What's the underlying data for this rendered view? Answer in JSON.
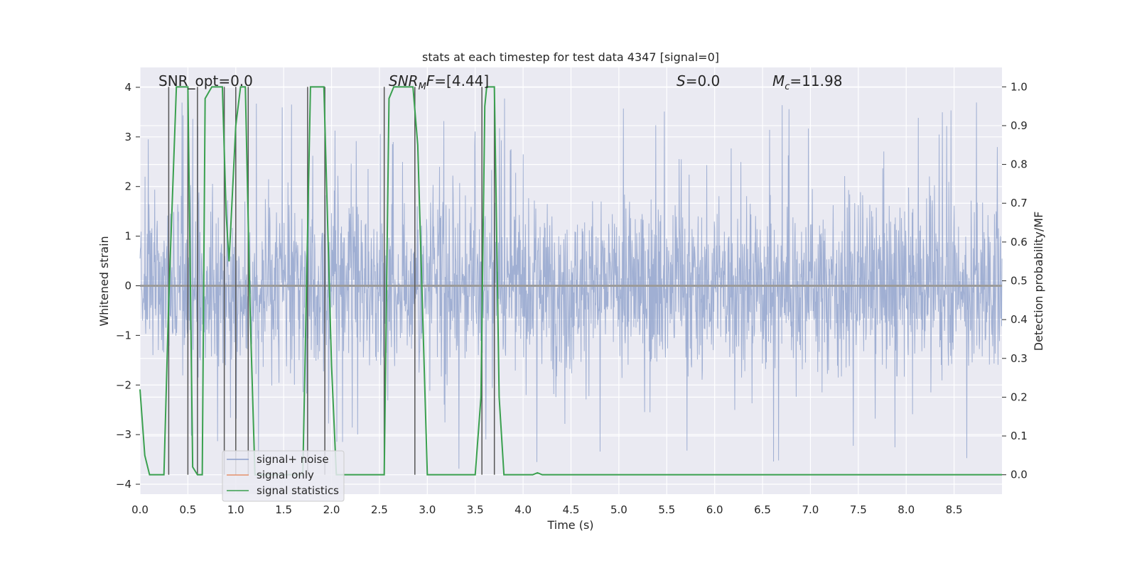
{
  "chart_data": {
    "type": "line",
    "title": "stats at each timestep for test data 4347 [signal=0]",
    "xlabel": "Time (s)",
    "ylabel": "Whitened strain",
    "y2label": "Detection probability/MF",
    "xlim": [
      0.0,
      9.0
    ],
    "ylim": [
      -4.2,
      4.4
    ],
    "y2lim": [
      -0.05,
      1.05
    ],
    "x_ticks": [
      "0.0",
      "0.5",
      "1.0",
      "1.5",
      "2.0",
      "2.5",
      "3.0",
      "3.5",
      "4.0",
      "4.5",
      "5.0",
      "5.5",
      "6.0",
      "6.5",
      "7.0",
      "7.5",
      "8.0",
      "8.5"
    ],
    "y_ticks": [
      "−4",
      "−3",
      "−2",
      "−1",
      "0",
      "1",
      "2",
      "3",
      "4"
    ],
    "y2_ticks": [
      "0.0",
      "0.1",
      "0.2",
      "0.3",
      "0.4",
      "0.5",
      "0.6",
      "0.7",
      "0.8",
      "0.9",
      "1.0"
    ],
    "grid": true,
    "annotations": {
      "snr_opt": "SNR_opt=0.0",
      "snr_mf_italic": "SNR",
      "snr_mf_sub": "M",
      "snr_mf_italic2": "F",
      "snr_mf_value": "=[4.44]",
      "s_italic": "S",
      "s_value": "=0.0",
      "mc_italic": "M",
      "mc_sub": "c",
      "mc_value": "=11.98"
    },
    "legend": {
      "placement": "lower-left",
      "entries": [
        {
          "label": "signal+ noise",
          "color": "#8da0cb"
        },
        {
          "label": "signal only",
          "color": "#e5906b"
        },
        {
          "label": "signal statistics",
          "color": "#3aa04f"
        }
      ]
    },
    "series": [
      {
        "name": "signal+ noise",
        "color": "#8da0cb",
        "axis": "left",
        "description": "whitened strain noise trace, roughly between -2.5 and 3.5",
        "noise_envelope": {
          "typical_low": -1.5,
          "typical_high": 1.7,
          "spike_max": 4.0,
          "spike_min": -3.9
        }
      },
      {
        "name": "signal only",
        "color": "#e5906b",
        "axis": "left",
        "x": [
          0.0,
          9.0
        ],
        "y": [
          0.0,
          0.0
        ]
      },
      {
        "name": "signal statistics",
        "color": "#3aa04f",
        "axis": "right",
        "x": [
          0.0,
          0.05,
          0.1,
          0.25,
          0.3,
          0.38,
          0.5,
          0.55,
          0.6,
          0.65,
          0.68,
          0.75,
          0.86,
          0.9,
          0.93,
          1.0,
          1.05,
          1.1,
          1.15,
          1.2,
          1.3,
          1.6,
          1.7,
          1.78,
          1.85,
          1.92,
          2.0,
          2.05,
          2.1,
          2.3,
          2.4,
          2.55,
          2.6,
          2.65,
          2.85,
          2.9,
          3.0,
          3.15,
          3.5,
          3.56,
          3.6,
          3.62,
          3.7,
          3.75,
          3.8,
          3.85,
          4.0,
          4.1,
          4.15,
          4.2,
          9.0
        ],
        "y": [
          0.22,
          0.05,
          0.0,
          0.0,
          0.45,
          1.0,
          1.0,
          0.02,
          0.0,
          0.0,
          0.97,
          1.0,
          1.0,
          0.67,
          0.55,
          0.9,
          1.0,
          1.0,
          0.42,
          0.0,
          0.0,
          0.0,
          0.0,
          1.0,
          1.0,
          1.0,
          0.28,
          0.0,
          0.0,
          0.0,
          0.0,
          0.0,
          0.97,
          1.0,
          1.0,
          0.85,
          0.0,
          0.0,
          0.0,
          0.2,
          0.95,
          1.0,
          1.0,
          0.2,
          0.0,
          0.0,
          0.0,
          0.0,
          0.005,
          0.0,
          0.0
        ]
      }
    ],
    "vertical_markers_x": [
      0.3,
      0.5,
      0.6,
      0.88,
      1.0,
      1.13,
      1.75,
      1.93,
      2.55,
      2.87,
      3.57,
      3.7
    ]
  }
}
